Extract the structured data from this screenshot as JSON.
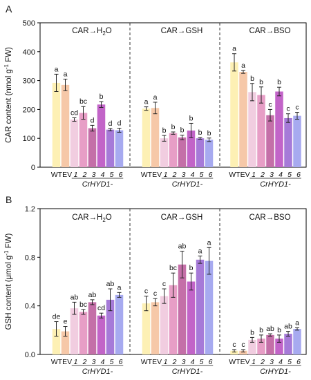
{
  "colors": {
    "WT": "#fdf0b4",
    "EV": "#f6c8a8",
    "1": "#f1cde0",
    "2": "#e79ec6",
    "3": "#c46fa8",
    "4": "#c264c8",
    "5": "#a67ad8",
    "6": "#a7aaf0",
    "axis": "#000000",
    "error_bar": "#222222"
  },
  "chart_data": [
    {
      "panel_letter": "A",
      "type": "bar",
      "ylabel": "CAR content (nmol g⁻¹ FW)",
      "ylabel_parts": {
        "main": "CAR content (nmol g",
        "sup": "-1",
        "tail": " FW)"
      },
      "ylim": [
        0,
        500
      ],
      "yticks": [
        "0",
        "100",
        "200",
        "300",
        "400",
        "500"
      ],
      "category_labels": [
        "WT",
        "EV",
        "1",
        "2",
        "3",
        "4",
        "5",
        "6"
      ],
      "line_group_label": "CrHYD1-",
      "groups": [
        {
          "title": "CAR→H",
          "title_sub": "2",
          "title_tail": "O",
          "values": [
            null,
            null,
            165,
            188,
            135,
            217,
            130,
            128
          ],
          "errors": [
            null,
            null,
            6,
            22,
            10,
            10,
            4,
            7
          ],
          "letters": [
            "",
            "",
            "cd",
            "bc",
            "d",
            "b",
            "d",
            "d"
          ]
        },
        {
          "title": "CAR→GSH",
          "title_sub": "",
          "title_tail": "",
          "values": [
            null,
            null,
            100,
            118,
            103,
            127,
            100,
            95
          ],
          "errors": [
            null,
            null,
            10,
            4,
            8,
            25,
            3,
            6
          ],
          "letters": [
            "",
            "",
            "b",
            "b",
            "b",
            "b",
            "b",
            "b"
          ]
        },
        {
          "title": "CAR→BSO",
          "title_sub": "",
          "title_tail": "",
          "values": [
            363,
            330,
            260,
            250,
            180,
            262,
            170,
            178
          ],
          "errors": [
            30,
            5,
            30,
            28,
            20,
            15,
            15,
            12
          ],
          "letters": [
            "a",
            "a",
            "b",
            "b",
            "c",
            "b",
            "c",
            "c"
          ]
        }
      ],
      "extra_series": [
        {
          "group": 0,
          "values": [
            292,
            285
          ],
          "errors": [
            30,
            20
          ],
          "letters": [
            "a",
            "a"
          ]
        },
        {
          "group": 1,
          "values": [
            203,
            205
          ],
          "errors": [
            6,
            20
          ],
          "letters": [
            "a",
            "a"
          ]
        }
      ]
    },
    {
      "panel_letter": "B",
      "type": "bar",
      "ylabel": "GSH content (μmol g⁻¹ FW)",
      "ylabel_parts": {
        "main": "GSH content (μmol g",
        "sup": "-1",
        "tail": " FW)"
      },
      "ylim": [
        0,
        1.2
      ],
      "yticks": [
        "0.0",
        "0.4",
        "0.8",
        "1.2"
      ],
      "category_labels": [
        "WT",
        "EV",
        "1",
        "2",
        "3",
        "4",
        "5",
        "6"
      ],
      "line_group_label": "CrHYD1-",
      "groups": [
        {
          "title": "CAR→H",
          "title_sub": "2",
          "title_tail": "O",
          "values": [
            0.21,
            0.19,
            0.38,
            0.35,
            0.43,
            0.32,
            0.45,
            0.49
          ],
          "errors": [
            0.06,
            0.04,
            0.05,
            0.02,
            0.02,
            0.02,
            0.09,
            0.02
          ],
          "letters": [
            "de",
            "e",
            "ab",
            "bc",
            "ab",
            "cd",
            "ab",
            "a"
          ]
        },
        {
          "title": "CAR→GSH",
          "title_sub": "",
          "title_tail": "",
          "values": [
            0.42,
            0.43,
            0.48,
            0.57,
            0.74,
            0.6,
            0.78,
            0.77
          ],
          "errors": [
            0.06,
            0.03,
            0.06,
            0.1,
            0.11,
            0.07,
            0.03,
            0.11
          ],
          "letters": [
            "c",
            "c",
            "c",
            "bc",
            "ab",
            "b",
            "a",
            "a"
          ]
        },
        {
          "title": "CAR→BSO",
          "title_sub": "",
          "title_tail": "",
          "values": [
            0.03,
            0.03,
            0.12,
            0.13,
            0.16,
            0.13,
            0.17,
            0.21
          ],
          "errors": [
            0.01,
            0.01,
            0.02,
            0.03,
            0.01,
            0.03,
            0.02,
            0.01
          ],
          "letters": [
            "c",
            "c",
            "b",
            "b",
            "ab",
            "b",
            "ab",
            "a"
          ]
        }
      ]
    }
  ]
}
